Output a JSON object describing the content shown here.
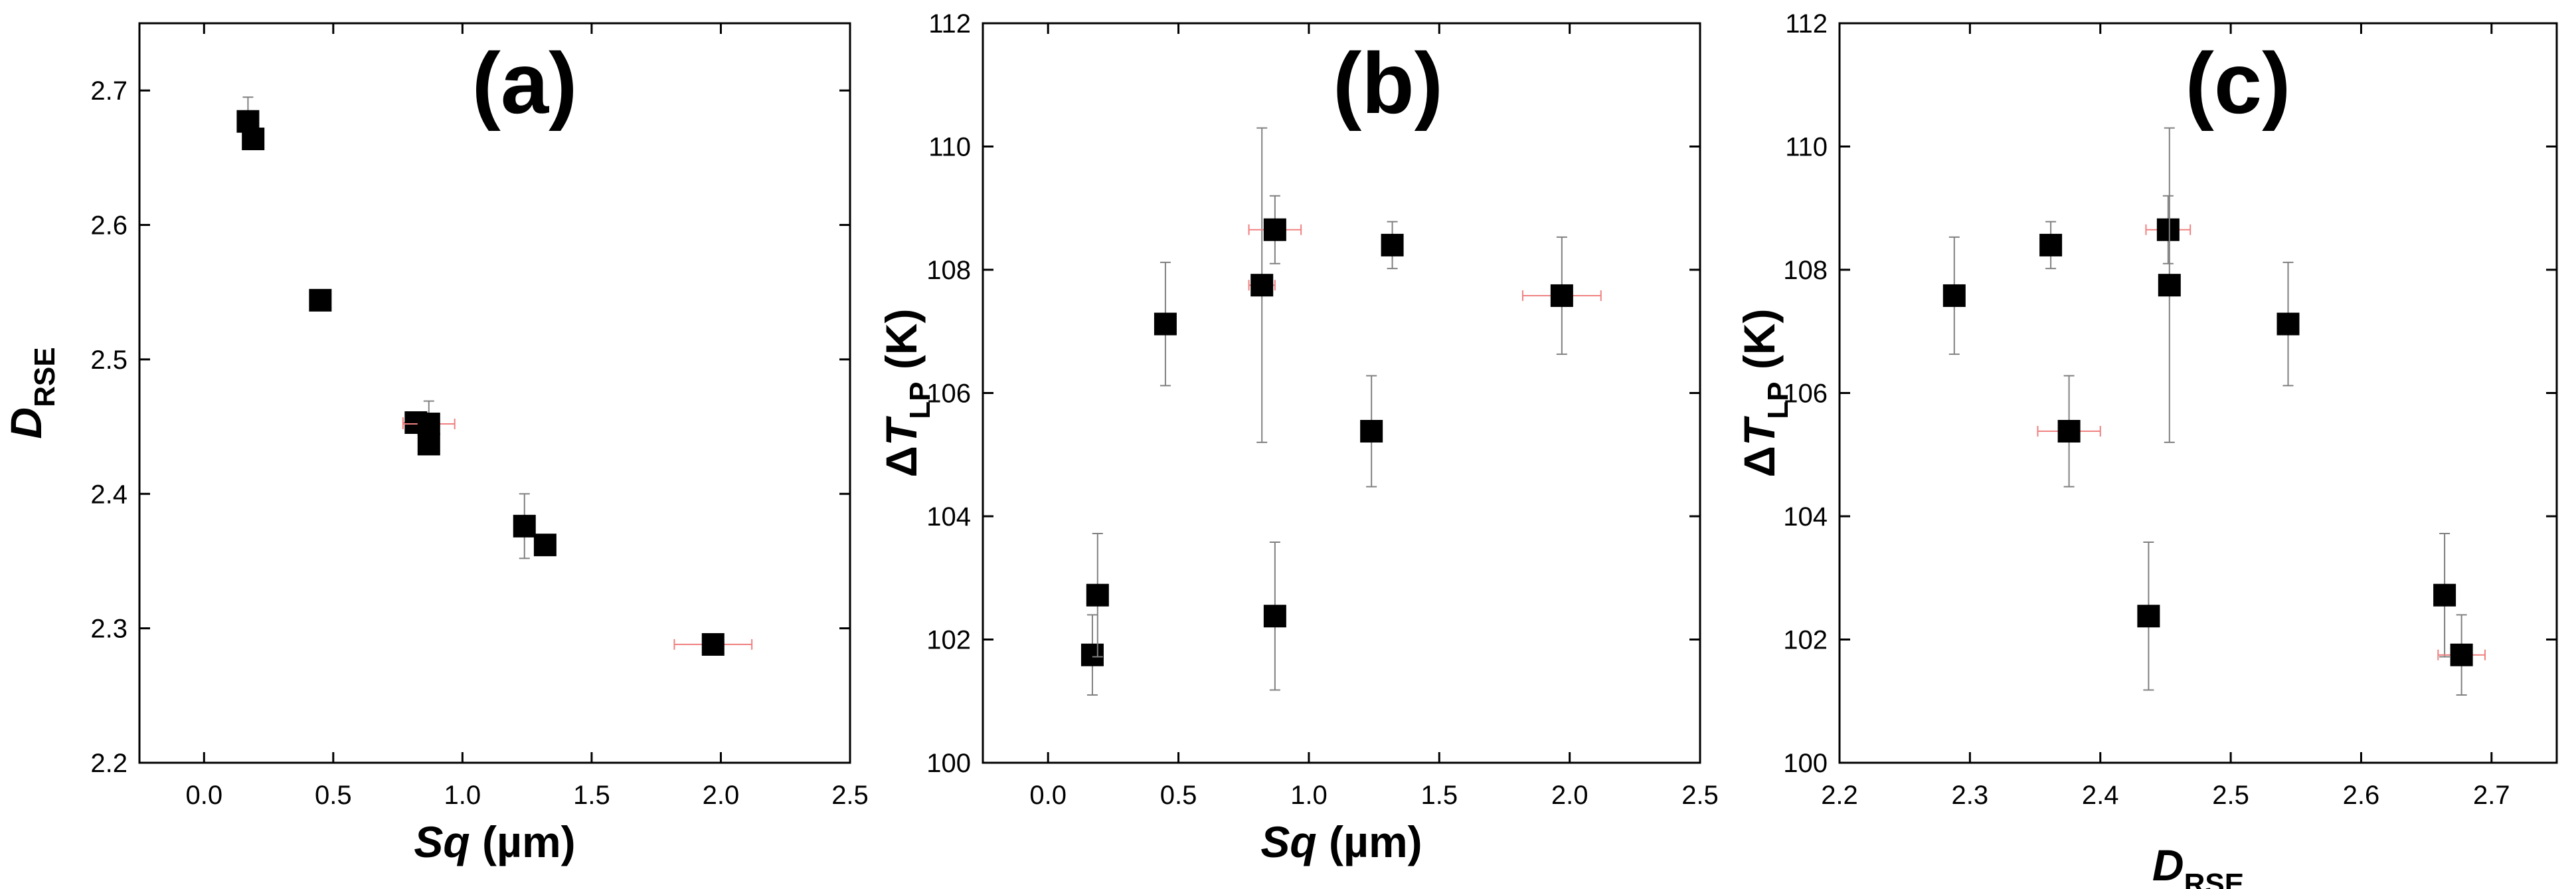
{
  "chart_data": [
    {
      "type": "scatter",
      "panel_label": "(a)",
      "xlabel_main": "Sq",
      "xlabel_unit": " (µm)",
      "ylabel_main": "D",
      "ylabel_sub": "RSE",
      "xlim": [
        -0.25,
        2.5
      ],
      "ylim": [
        2.2,
        2.75
      ],
      "xticks": [
        "0.0",
        "0.5",
        "1.0",
        "1.5",
        "2.0",
        "2.5"
      ],
      "xtick_values": [
        0.0,
        0.5,
        1.0,
        1.5,
        2.0,
        2.5
      ],
      "yticks": [
        "2.2",
        "2.3",
        "2.4",
        "2.5",
        "2.6",
        "2.7"
      ],
      "ytick_values": [
        2.2,
        2.3,
        2.4,
        2.5,
        2.6,
        2.7
      ],
      "points": [
        {
          "x": 0.17,
          "y": 2.677,
          "xerr": 0.02,
          "yerr": 0.018
        },
        {
          "x": 0.19,
          "y": 2.664,
          "xerr": 0.02,
          "yerr": 0.0
        },
        {
          "x": 0.45,
          "y": 2.544,
          "xerr": 0.02,
          "yerr": 0.0
        },
        {
          "x": 0.82,
          "y": 2.453,
          "xerr": 0.05,
          "yerr": 0.0
        },
        {
          "x": 0.87,
          "y": 2.452,
          "xerr": 0.1,
          "yerr": 0.017
        },
        {
          "x": 0.87,
          "y": 2.437,
          "xerr": 0.02,
          "yerr": 0.0
        },
        {
          "x": 1.24,
          "y": 2.376,
          "xerr": 0.03,
          "yerr": 0.024
        },
        {
          "x": 1.32,
          "y": 2.362,
          "xerr": 0.03,
          "yerr": 0.0
        },
        {
          "x": 1.97,
          "y": 2.288,
          "xerr": 0.15,
          "yerr": 0.0
        }
      ]
    },
    {
      "type": "scatter",
      "panel_label": "(b)",
      "xlabel_main": "Sq",
      "xlabel_unit": " (µm)",
      "ylabel_delta": "Δ",
      "ylabel_main": "T",
      "ylabel_sub": "LP",
      "ylabel_unit": " (K)",
      "xlim": [
        -0.25,
        2.5
      ],
      "ylim": [
        100,
        112
      ],
      "xticks": [
        "0.0",
        "0.5",
        "1.0",
        "1.5",
        "2.0",
        "2.5"
      ],
      "xtick_values": [
        0.0,
        0.5,
        1.0,
        1.5,
        2.0,
        2.5
      ],
      "yticks": [
        "100",
        "102",
        "104",
        "106",
        "108",
        "110",
        "112"
      ],
      "ytick_values": [
        100,
        102,
        104,
        106,
        108,
        110,
        112
      ],
      "points": [
        {
          "x": 0.17,
          "y": 101.75,
          "xerr": 0.02,
          "yerr": 0.65
        },
        {
          "x": 0.19,
          "y": 102.72,
          "xerr": 0.02,
          "yerr": 1.0
        },
        {
          "x": 0.45,
          "y": 107.12,
          "xerr": 0.02,
          "yerr": 1.0
        },
        {
          "x": 0.82,
          "y": 107.75,
          "xerr": 0.05,
          "yerr": 2.55
        },
        {
          "x": 0.87,
          "y": 108.65,
          "xerr": 0.1,
          "yerr": 0.55
        },
        {
          "x": 0.87,
          "y": 102.38,
          "xerr": 0.02,
          "yerr": 1.2
        },
        {
          "x": 1.24,
          "y": 105.38,
          "xerr": 0.03,
          "yerr": 0.9
        },
        {
          "x": 1.32,
          "y": 108.4,
          "xerr": 0.03,
          "yerr": 0.38
        },
        {
          "x": 1.97,
          "y": 107.58,
          "xerr": 0.15,
          "yerr": 0.95
        }
      ]
    },
    {
      "type": "scatter",
      "panel_label": "(c)",
      "xlabel_main": "D",
      "xlabel_sub": "RSE",
      "ylabel_delta": "Δ",
      "ylabel_main": "T",
      "ylabel_sub": "LP",
      "ylabel_unit": " (K)",
      "xlim": [
        2.2,
        2.75
      ],
      "ylim": [
        100,
        112
      ],
      "xticks": [
        "2.2",
        "2.3",
        "2.4",
        "2.5",
        "2.6",
        "2.7"
      ],
      "xtick_values": [
        2.2,
        2.3,
        2.4,
        2.5,
        2.6,
        2.7
      ],
      "yticks": [
        "100",
        "102",
        "104",
        "106",
        "108",
        "110",
        "112"
      ],
      "ytick_values": [
        100,
        102,
        104,
        106,
        108,
        110,
        112
      ],
      "points": [
        {
          "x": 2.288,
          "y": 107.58,
          "xerr": 0.0,
          "yerr": 0.95
        },
        {
          "x": 2.362,
          "y": 108.4,
          "xerr": 0.0,
          "yerr": 0.38
        },
        {
          "x": 2.376,
          "y": 105.38,
          "xerr": 0.024,
          "yerr": 0.9
        },
        {
          "x": 2.437,
          "y": 102.38,
          "xerr": 0.0,
          "yerr": 1.2
        },
        {
          "x": 2.452,
          "y": 108.65,
          "xerr": 0.017,
          "yerr": 0.55
        },
        {
          "x": 2.453,
          "y": 107.75,
          "xerr": 0.0,
          "yerr": 2.55
        },
        {
          "x": 2.544,
          "y": 107.12,
          "xerr": 0.0,
          "yerr": 1.0
        },
        {
          "x": 2.664,
          "y": 102.72,
          "xerr": 0.0,
          "yerr": 1.0
        },
        {
          "x": 2.677,
          "y": 101.75,
          "xerr": 0.018,
          "yerr": 0.65
        }
      ]
    }
  ],
  "colors": {
    "marker": "#000000",
    "xerror": "#f08080",
    "yerror": "#808080",
    "axis": "#000000"
  }
}
